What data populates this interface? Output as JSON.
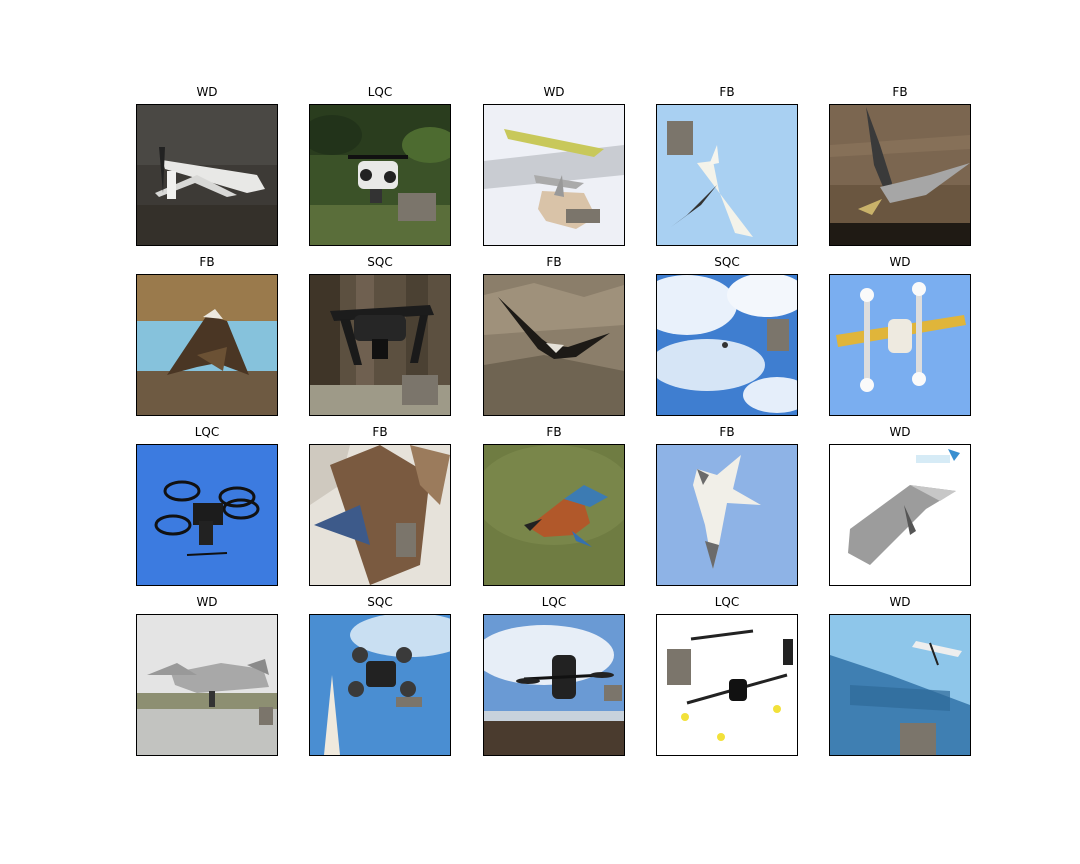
{
  "figure": {
    "rows": 4,
    "cols": 5,
    "patch_color": "#7b756b",
    "panels": [
      {
        "label": "WD",
        "subject": "dark-drone"
      },
      {
        "label": "LQC",
        "subject": "quadcopter-forest"
      },
      {
        "label": "WD",
        "subject": "yellow-plane-package"
      },
      {
        "label": "FB",
        "subject": "egret-sky"
      },
      {
        "label": "FB",
        "subject": "heron-grass"
      },
      {
        "label": "FB",
        "subject": "osprey-water"
      },
      {
        "label": "SQC",
        "subject": "black-drone-forest"
      },
      {
        "label": "FB",
        "subject": "condor-valley"
      },
      {
        "label": "SQC",
        "subject": "tiny-drone-clouds"
      },
      {
        "label": "WD",
        "subject": "multirotor-plane"
      },
      {
        "label": "LQC",
        "subject": "quadcopter-blue"
      },
      {
        "label": "FB",
        "subject": "falcon-closeup"
      },
      {
        "label": "FB",
        "subject": "kingfisher"
      },
      {
        "label": "FB",
        "subject": "gannet-sky"
      },
      {
        "label": "WD",
        "subject": "flying-wing-white"
      },
      {
        "label": "WD",
        "subject": "vtol-runway"
      },
      {
        "label": "SQC",
        "subject": "quad-tower"
      },
      {
        "label": "LQC",
        "subject": "hex-drone-coast"
      },
      {
        "label": "LQC",
        "subject": "octo-drone-white"
      },
      {
        "label": "WD",
        "subject": "plane-sign"
      }
    ]
  }
}
